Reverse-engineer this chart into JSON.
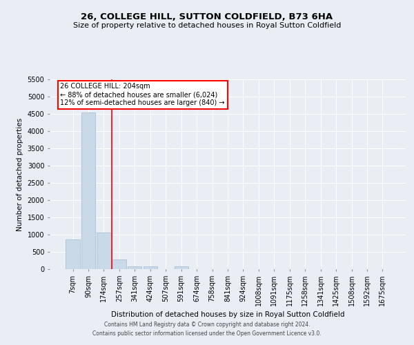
{
  "title": "26, COLLEGE HILL, SUTTON COLDFIELD, B73 6HA",
  "subtitle": "Size of property relative to detached houses in Royal Sutton Coldfield",
  "xlabel": "Distribution of detached houses by size in Royal Sutton Coldfield",
  "ylabel": "Number of detached properties",
  "footer_line1": "Contains HM Land Registry data © Crown copyright and database right 2024.",
  "footer_line2": "Contains public sector information licensed under the Open Government Licence v3.0.",
  "annotation_title": "26 COLLEGE HILL: 204sqm",
  "annotation_line1": "← 88% of detached houses are smaller (6,024)",
  "annotation_line2": "12% of semi-detached houses are larger (840) →",
  "bar_labels": [
    "7sqm",
    "90sqm",
    "174sqm",
    "257sqm",
    "341sqm",
    "424sqm",
    "507sqm",
    "591sqm",
    "674sqm",
    "758sqm",
    "841sqm",
    "924sqm",
    "1008sqm",
    "1091sqm",
    "1175sqm",
    "1258sqm",
    "1341sqm",
    "1425sqm",
    "1508sqm",
    "1592sqm",
    "1675sqm"
  ],
  "bar_values": [
    870,
    4550,
    1060,
    285,
    90,
    75,
    0,
    80,
    0,
    0,
    0,
    0,
    0,
    0,
    0,
    0,
    0,
    0,
    0,
    0,
    0
  ],
  "bar_color": "#c9d9e8",
  "bar_edge_color": "#a0b8cc",
  "red_line_x": 2.5,
  "ylim": [
    0,
    5500
  ],
  "yticks": [
    0,
    500,
    1000,
    1500,
    2000,
    2500,
    3000,
    3500,
    4000,
    4500,
    5000,
    5500
  ],
  "bg_color": "#e8eef4",
  "grid_color": "#ffffff",
  "title_fontsize": 9.5,
  "subtitle_fontsize": 8,
  "ylabel_fontsize": 7.5,
  "xlabel_fontsize": 7.5,
  "tick_fontsize": 7,
  "annotation_fontsize": 7,
  "footer_fontsize": 5.5
}
